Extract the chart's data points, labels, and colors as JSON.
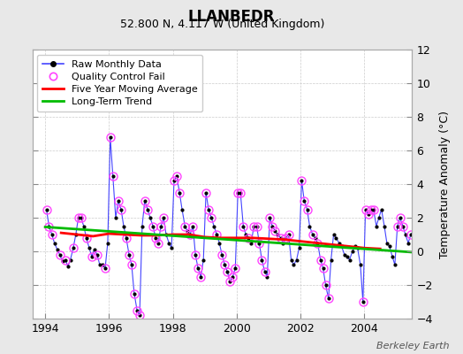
{
  "title": "LLANBEDR",
  "subtitle": "52.800 N, 4.117 W (United Kingdom)",
  "ylabel": "Temperature Anomaly (°C)",
  "credit": "Berkeley Earth",
  "xlim": [
    1993.6,
    2005.5
  ],
  "ylim": [
    -4,
    12
  ],
  "yticks": [
    -4,
    -2,
    0,
    2,
    4,
    6,
    8,
    10,
    12
  ],
  "xticks": [
    1994,
    1996,
    1998,
    2000,
    2002,
    2004
  ],
  "bg_color": "#e8e8e8",
  "plot_bg_color": "#ffffff",
  "raw_color": "#4444ff",
  "raw_marker_color": "#000000",
  "qc_color": "#ff44ff",
  "moving_avg_color": "#ff0000",
  "trend_color": "#00bb00",
  "raw_data": [
    [
      1994.04,
      2.5
    ],
    [
      1994.12,
      1.5
    ],
    [
      1994.21,
      1.0
    ],
    [
      1994.29,
      0.5
    ],
    [
      1994.38,
      0.1
    ],
    [
      1994.46,
      -0.2
    ],
    [
      1994.54,
      -0.6
    ],
    [
      1994.63,
      -0.5
    ],
    [
      1994.71,
      -0.9
    ],
    [
      1994.79,
      -0.5
    ],
    [
      1994.88,
      0.2
    ],
    [
      1994.96,
      1.0
    ],
    [
      1995.04,
      2.0
    ],
    [
      1995.12,
      2.0
    ],
    [
      1995.21,
      1.5
    ],
    [
      1995.29,
      0.8
    ],
    [
      1995.38,
      0.2
    ],
    [
      1995.46,
      -0.3
    ],
    [
      1995.54,
      0.1
    ],
    [
      1995.63,
      -0.2
    ],
    [
      1995.71,
      -0.8
    ],
    [
      1995.79,
      -0.8
    ],
    [
      1995.88,
      -1.0
    ],
    [
      1995.96,
      0.5
    ],
    [
      1996.04,
      6.8
    ],
    [
      1996.12,
      4.5
    ],
    [
      1996.21,
      2.0
    ],
    [
      1996.29,
      3.0
    ],
    [
      1996.38,
      2.5
    ],
    [
      1996.46,
      1.5
    ],
    [
      1996.54,
      0.8
    ],
    [
      1996.63,
      -0.2
    ],
    [
      1996.71,
      -0.8
    ],
    [
      1996.79,
      -2.5
    ],
    [
      1996.88,
      -3.5
    ],
    [
      1996.96,
      -3.8
    ],
    [
      1997.04,
      1.5
    ],
    [
      1997.12,
      3.0
    ],
    [
      1997.21,
      2.5
    ],
    [
      1997.29,
      2.0
    ],
    [
      1997.38,
      1.5
    ],
    [
      1997.46,
      0.8
    ],
    [
      1997.54,
      0.5
    ],
    [
      1997.63,
      1.5
    ],
    [
      1997.71,
      2.0
    ],
    [
      1997.79,
      1.0
    ],
    [
      1997.88,
      0.5
    ],
    [
      1997.96,
      0.2
    ],
    [
      1998.04,
      4.2
    ],
    [
      1998.12,
      4.5
    ],
    [
      1998.21,
      3.5
    ],
    [
      1998.29,
      2.5
    ],
    [
      1998.38,
      1.5
    ],
    [
      1998.46,
      1.2
    ],
    [
      1998.54,
      1.0
    ],
    [
      1998.63,
      1.5
    ],
    [
      1998.71,
      -0.2
    ],
    [
      1998.79,
      -1.0
    ],
    [
      1998.88,
      -1.5
    ],
    [
      1998.96,
      -0.5
    ],
    [
      1999.04,
      3.5
    ],
    [
      1999.12,
      2.5
    ],
    [
      1999.21,
      2.0
    ],
    [
      1999.29,
      1.5
    ],
    [
      1999.38,
      1.0
    ],
    [
      1999.46,
      0.5
    ],
    [
      1999.54,
      -0.2
    ],
    [
      1999.63,
      -0.8
    ],
    [
      1999.71,
      -1.2
    ],
    [
      1999.79,
      -1.8
    ],
    [
      1999.88,
      -1.5
    ],
    [
      1999.96,
      -1.0
    ],
    [
      2000.04,
      3.5
    ],
    [
      2000.12,
      3.5
    ],
    [
      2000.21,
      1.5
    ],
    [
      2000.29,
      1.0
    ],
    [
      2000.38,
      0.8
    ],
    [
      2000.46,
      0.5
    ],
    [
      2000.54,
      1.5
    ],
    [
      2000.63,
      1.5
    ],
    [
      2000.71,
      0.5
    ],
    [
      2000.79,
      -0.5
    ],
    [
      2000.88,
      -1.2
    ],
    [
      2000.96,
      -1.5
    ],
    [
      2001.04,
      2.0
    ],
    [
      2001.12,
      1.5
    ],
    [
      2001.21,
      1.2
    ],
    [
      2001.29,
      1.0
    ],
    [
      2001.38,
      0.8
    ],
    [
      2001.46,
      0.5
    ],
    [
      2001.54,
      0.8
    ],
    [
      2001.63,
      1.0
    ],
    [
      2001.71,
      -0.5
    ],
    [
      2001.79,
      -0.8
    ],
    [
      2001.88,
      -0.5
    ],
    [
      2001.96,
      0.2
    ],
    [
      2002.04,
      4.2
    ],
    [
      2002.12,
      3.0
    ],
    [
      2002.21,
      2.5
    ],
    [
      2002.29,
      1.5
    ],
    [
      2002.38,
      1.0
    ],
    [
      2002.46,
      0.8
    ],
    [
      2002.54,
      0.5
    ],
    [
      2002.63,
      -0.5
    ],
    [
      2002.71,
      -1.0
    ],
    [
      2002.79,
      -2.0
    ],
    [
      2002.88,
      -2.8
    ],
    [
      2002.96,
      -0.5
    ],
    [
      2003.04,
      1.0
    ],
    [
      2003.12,
      0.8
    ],
    [
      2003.21,
      0.5
    ],
    [
      2003.29,
      0.3
    ],
    [
      2003.38,
      -0.2
    ],
    [
      2003.46,
      -0.3
    ],
    [
      2003.54,
      -0.5
    ],
    [
      2003.63,
      0.0
    ],
    [
      2003.71,
      0.3
    ],
    [
      2003.79,
      0.2
    ],
    [
      2003.88,
      -0.8
    ],
    [
      2003.96,
      -3.0
    ],
    [
      2004.04,
      2.5
    ],
    [
      2004.12,
      2.2
    ],
    [
      2004.21,
      2.5
    ],
    [
      2004.29,
      2.5
    ],
    [
      2004.38,
      1.5
    ],
    [
      2004.46,
      2.0
    ],
    [
      2004.54,
      2.5
    ],
    [
      2004.63,
      1.5
    ],
    [
      2004.71,
      0.5
    ],
    [
      2004.79,
      0.3
    ],
    [
      2004.88,
      -0.3
    ],
    [
      2004.96,
      -0.8
    ],
    [
      2005.04,
      1.5
    ],
    [
      2005.12,
      2.0
    ],
    [
      2005.21,
      1.5
    ],
    [
      2005.29,
      1.0
    ],
    [
      2005.38,
      0.5
    ],
    [
      2005.46,
      1.0
    ],
    [
      2005.54,
      1.2
    ]
  ],
  "qc_fail_x": [
    1994.04,
    1994.12,
    1994.21,
    1994.46,
    1994.63,
    1994.88,
    1995.04,
    1995.12,
    1995.29,
    1995.46,
    1995.63,
    1995.88,
    1996.04,
    1996.12,
    1996.29,
    1996.38,
    1996.54,
    1996.63,
    1996.71,
    1996.79,
    1996.88,
    1996.96,
    1997.12,
    1997.21,
    1997.38,
    1997.46,
    1997.54,
    1997.63,
    1997.71,
    1998.04,
    1998.12,
    1998.21,
    1998.38,
    1998.54,
    1998.63,
    1998.71,
    1998.79,
    1998.88,
    1999.04,
    1999.12,
    1999.21,
    1999.38,
    1999.54,
    1999.63,
    1999.71,
    1999.79,
    1999.88,
    1999.96,
    2000.04,
    2000.12,
    2000.21,
    2000.38,
    2000.54,
    2000.63,
    2000.71,
    2000.79,
    2000.88,
    2001.04,
    2001.12,
    2001.21,
    2001.38,
    2001.54,
    2001.63,
    2002.04,
    2002.12,
    2002.21,
    2002.38,
    2002.54,
    2002.63,
    2002.71,
    2002.79,
    2002.88,
    2003.96,
    2004.04,
    2004.12,
    2004.21,
    2004.29,
    2005.04,
    2005.12,
    2005.21,
    2005.46
  ],
  "qc_fail_y": [
    2.5,
    1.5,
    1.0,
    -0.2,
    -0.5,
    0.2,
    2.0,
    2.0,
    0.8,
    -0.3,
    -0.2,
    -1.0,
    6.8,
    4.5,
    3.0,
    2.5,
    0.8,
    -0.2,
    -0.8,
    -2.5,
    -3.5,
    -3.8,
    3.0,
    2.5,
    1.5,
    0.8,
    0.5,
    1.5,
    2.0,
    4.2,
    4.5,
    3.5,
    1.5,
    1.0,
    1.5,
    -0.2,
    -1.0,
    -1.5,
    3.5,
    2.5,
    2.0,
    1.0,
    -0.2,
    -0.8,
    -1.2,
    -1.8,
    -1.5,
    -1.0,
    3.5,
    3.5,
    1.5,
    0.8,
    1.5,
    1.5,
    0.5,
    -0.5,
    -1.2,
    2.0,
    1.5,
    1.2,
    0.8,
    0.8,
    1.0,
    4.2,
    3.0,
    2.5,
    1.0,
    0.5,
    -0.5,
    -1.0,
    -2.0,
    -2.8,
    -3.0,
    2.5,
    2.2,
    2.5,
    2.5,
    1.5,
    2.0,
    1.5,
    1.0
  ],
  "moving_avg_x": [
    1994.5,
    1995.0,
    1995.5,
    1996.0,
    1996.5,
    1997.0,
    1997.5,
    1998.0,
    1998.5,
    1999.0,
    1999.5,
    2000.0,
    2000.5,
    2001.0,
    2001.5,
    2002.0,
    2002.5,
    2003.0,
    2003.5,
    2004.0,
    2004.5
  ],
  "moving_avg_y": [
    1.1,
    1.0,
    0.9,
    1.05,
    1.0,
    0.95,
    0.95,
    1.0,
    1.0,
    0.85,
    0.8,
    0.8,
    0.8,
    0.75,
    0.7,
    0.6,
    0.5,
    0.4,
    0.3,
    0.2,
    0.15
  ],
  "trend_x": [
    1994.0,
    2005.5
  ],
  "trend_y": [
    1.45,
    -0.05
  ]
}
